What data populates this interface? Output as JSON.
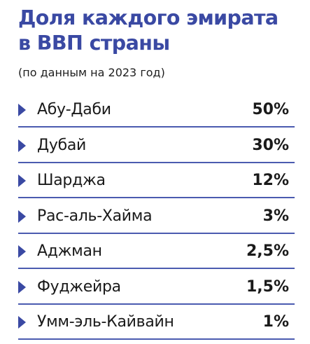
{
  "chart_data": {
    "type": "table",
    "title": "Доля каждого эмирата в ВВП страны",
    "title_lines": [
      "Доля каждого эмирата",
      "в ВВП страны"
    ],
    "subtitle": "(по данным на 2023 год)",
    "categories": [
      "Абу-Даби",
      "Дубай",
      "Шарджа",
      "Рас-аль-Хайма",
      "Аджман",
      "Фуджейра",
      "Умм-эль-Кайвайн"
    ],
    "values": [
      50,
      30,
      12,
      3,
      2.5,
      1.5,
      1
    ],
    "value_labels": [
      "50%",
      "30%",
      "12%",
      "3%",
      "2,5%",
      "1,5%",
      "1%"
    ],
    "unit": "%"
  },
  "colors": {
    "accent": "#3a49a3",
    "text": "#1a1a1a",
    "divider": "#4b5bb0",
    "background": "#ffffff"
  },
  "icons": {
    "row_marker": "triangle-right-icon"
  }
}
